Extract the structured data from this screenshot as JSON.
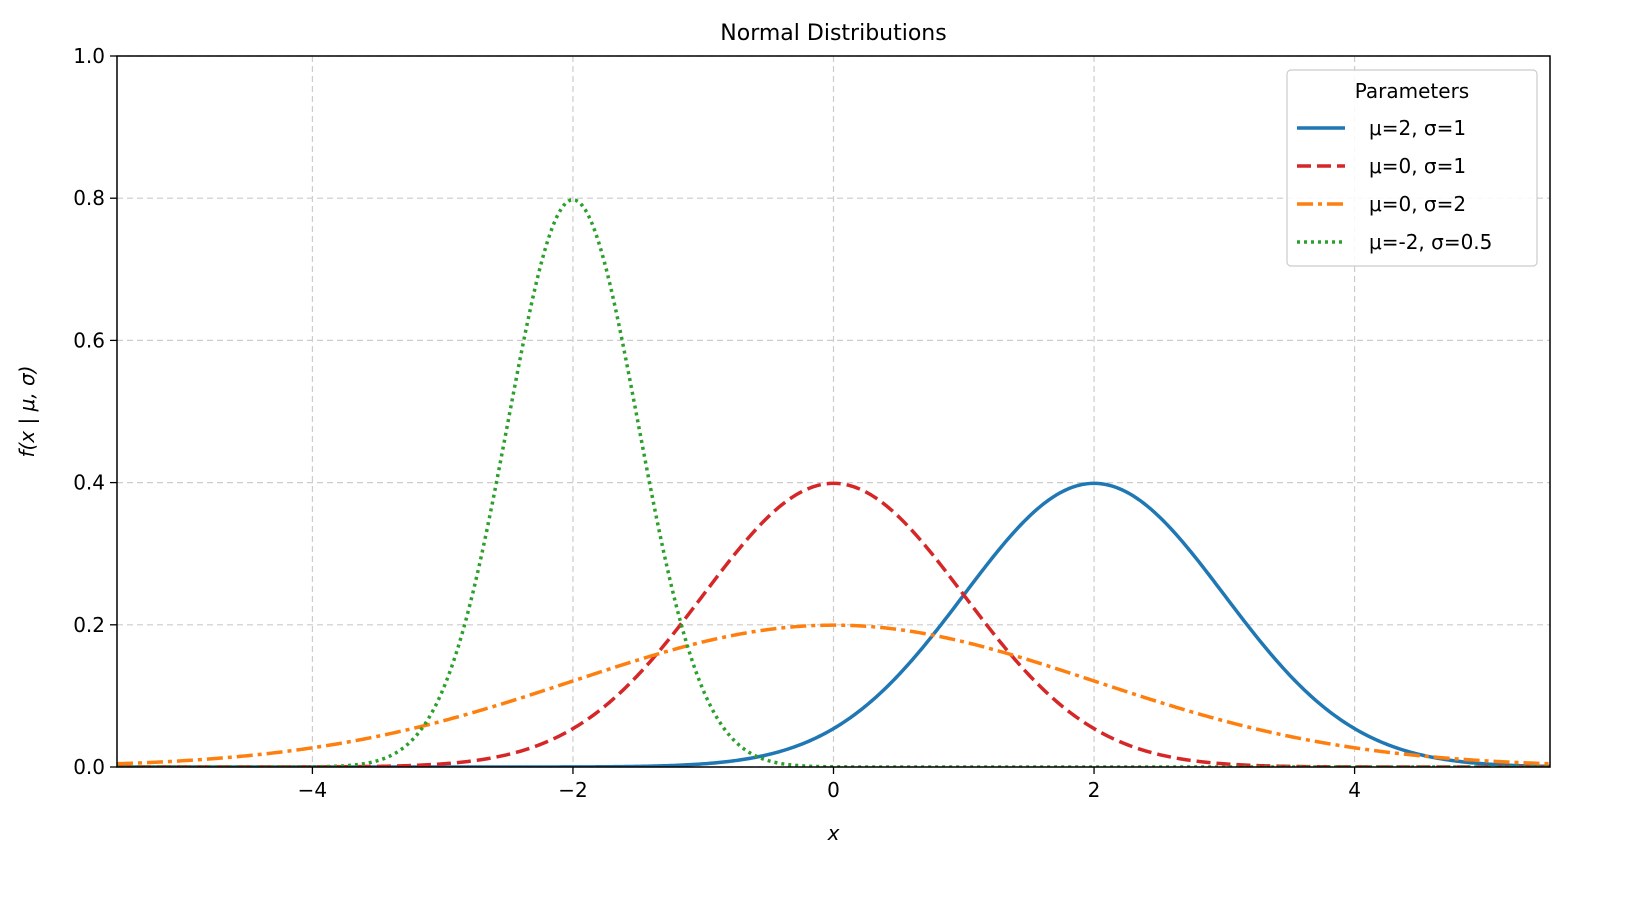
{
  "chart_data": {
    "type": "line",
    "title": "Normal Distributions",
    "xlabel": "x",
    "ylabel": "f(x | μ, σ)",
    "xlim": [
      -5.5,
      5.5
    ],
    "ylim": [
      0.0,
      1.0
    ],
    "xticks": [
      -4,
      -2,
      0,
      2,
      4
    ],
    "xtick_labels": [
      "−4",
      "−2",
      "0",
      "2",
      "4"
    ],
    "yticks": [
      0.0,
      0.2,
      0.4,
      0.6,
      0.8,
      1.0
    ],
    "ytick_labels": [
      "0.0",
      "0.2",
      "0.4",
      "0.6",
      "0.8",
      "1.0"
    ],
    "grid": true,
    "legend": {
      "title": "Parameters",
      "placement": "top-right"
    },
    "series": [
      {
        "name": "μ=2, σ=1",
        "mu": 2,
        "sigma": 1,
        "color": "#1f77b4",
        "style": "solid"
      },
      {
        "name": "μ=0, σ=1",
        "mu": 0,
        "sigma": 1,
        "color": "#d62728",
        "style": "dashed"
      },
      {
        "name": "μ=0, σ=2",
        "mu": 0,
        "sigma": 2,
        "color": "#ff7f0e",
        "style": "dashdot"
      },
      {
        "name": "μ=-2, σ=0.5",
        "mu": -2,
        "sigma": 0.5,
        "color": "#2ca02c",
        "style": "dotted"
      }
    ]
  }
}
